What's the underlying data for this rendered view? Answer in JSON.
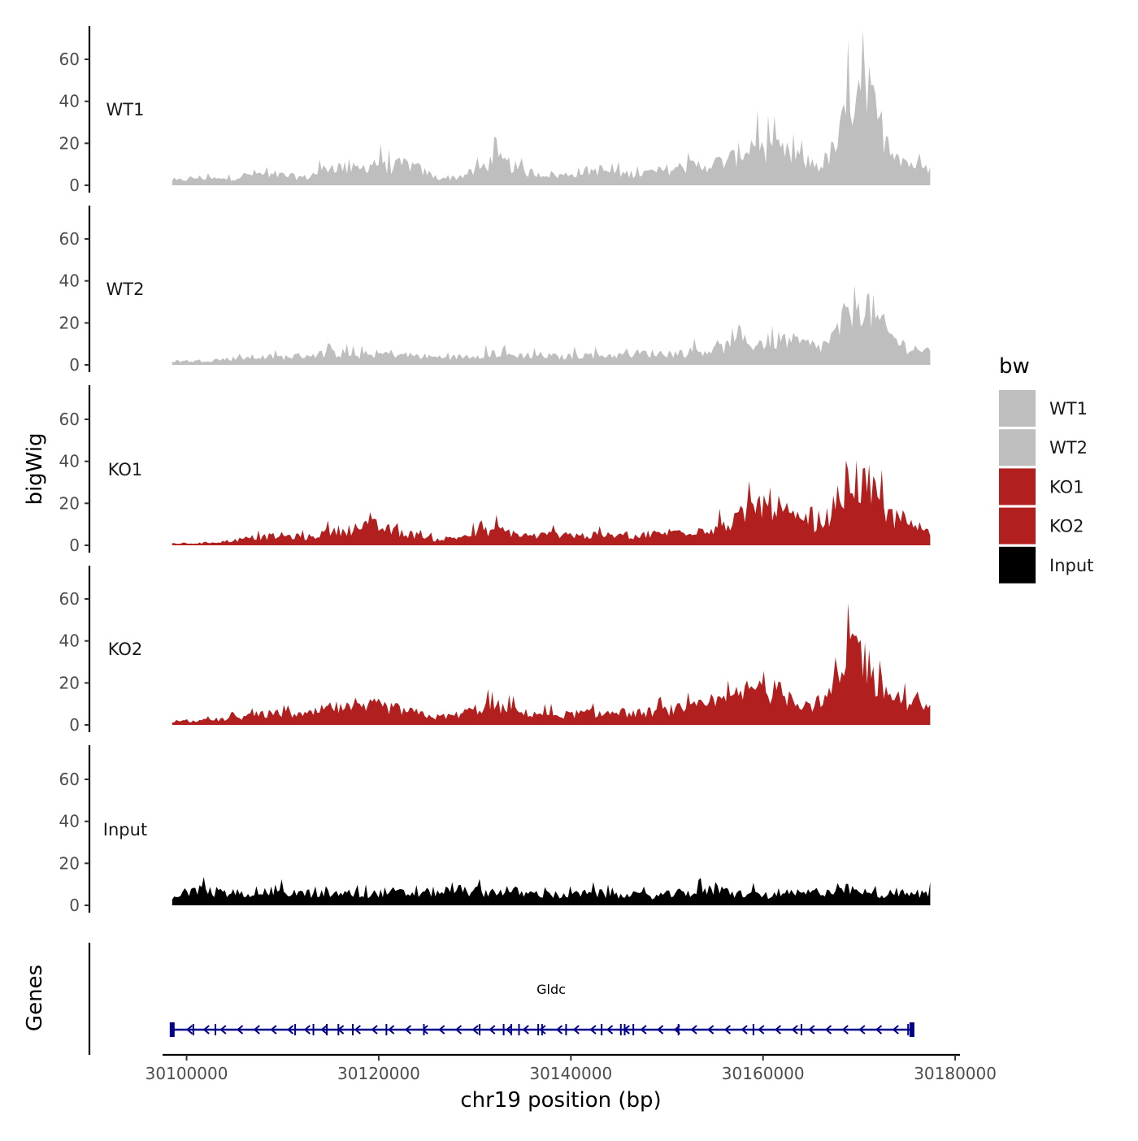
{
  "chart_data": {
    "type": "area",
    "title": "",
    "xlabel": "chr19 position (bp)",
    "ylabel": "bigWig",
    "genes_label": "Genes",
    "xlim": [
      30097500,
      30180500
    ],
    "ylim": [
      0,
      75
    ],
    "x_ticks": [
      30100000,
      30120000,
      30140000,
      30160000,
      30180000
    ],
    "x_tick_labels": [
      "30100000",
      "30120000",
      "30140000",
      "30160000",
      "30180000"
    ],
    "y_ticks": [
      0,
      20,
      40,
      60
    ],
    "y_tick_labels": [
      "0",
      "20",
      "40",
      "60"
    ],
    "region": [
      30098500,
      30177400
    ],
    "x_positions": [
      30098500,
      30101000,
      30104000,
      30107000,
      30110000,
      30112500,
      30115000,
      30118000,
      30119500,
      30121000,
      30123000,
      30126000,
      30128000,
      30130000,
      30132000,
      30133500,
      30135000,
      30137000,
      30139000,
      30141000,
      30143000,
      30145000,
      30147000,
      30149000,
      30151000,
      30153000,
      30155000,
      30157000,
      30159000,
      30160500,
      30162000,
      30164000,
      30166000,
      30167500,
      30169000,
      30170000,
      30171000,
      30172000,
      30173500,
      30175000,
      30176500,
      30177400
    ],
    "series": [
      {
        "name": "WT1",
        "color": "#bebebe",
        "values": [
          2,
          4,
          3,
          6,
          5,
          4,
          10,
          8,
          12,
          9,
          11,
          4,
          4,
          7,
          13,
          11,
          7,
          6,
          5,
          7,
          8,
          6,
          6,
          7,
          9,
          10,
          11,
          14,
          22,
          18,
          17,
          13,
          10,
          19,
          40,
          62,
          45,
          32,
          20,
          12,
          9,
          7
        ]
      },
      {
        "name": "WT2",
        "color": "#bebebe",
        "values": [
          2,
          2,
          3,
          4,
          4,
          5,
          6,
          5,
          5,
          6,
          5,
          4,
          4,
          5,
          6,
          5,
          5,
          5,
          4,
          5,
          5,
          5,
          6,
          6,
          6,
          7,
          8,
          10,
          11,
          12,
          13,
          11,
          9,
          15,
          28,
          33,
          30,
          22,
          14,
          9,
          8,
          6
        ]
      },
      {
        "name": "KO1",
        "color": "#b21f1f",
        "values": [
          1,
          1,
          2,
          4,
          5,
          4,
          7,
          9,
          10,
          8,
          6,
          3,
          4,
          6,
          8,
          7,
          5,
          5,
          6,
          5,
          5,
          5,
          5,
          6,
          7,
          8,
          9,
          12,
          20,
          22,
          18,
          11,
          10,
          20,
          35,
          32,
          30,
          22,
          14,
          10,
          9,
          8
        ]
      },
      {
        "name": "KO2",
        "color": "#b21f1f",
        "values": [
          2,
          2,
          3,
          5,
          6,
          5,
          9,
          8,
          10,
          9,
          7,
          4,
          5,
          8,
          10,
          8,
          6,
          6,
          5,
          6,
          6,
          6,
          6,
          7,
          8,
          9,
          11,
          14,
          19,
          18,
          16,
          12,
          10,
          18,
          38,
          42,
          30,
          20,
          15,
          12,
          10,
          6
        ]
      },
      {
        "name": "Input",
        "color": "#000000",
        "values": [
          5,
          8,
          6,
          7,
          7,
          6,
          6,
          6,
          6,
          7,
          6,
          7,
          8,
          7,
          7,
          8,
          6,
          6,
          5,
          6,
          6,
          5,
          5,
          5,
          6,
          7,
          8,
          6,
          6,
          5,
          6,
          6,
          7,
          8,
          8,
          7,
          6,
          6,
          6,
          6,
          6,
          6
        ]
      }
    ],
    "legend": {
      "title": "bw",
      "position": "right",
      "items": [
        {
          "label": "WT1",
          "color": "#bebebe"
        },
        {
          "label": "WT2",
          "color": "#bebebe"
        },
        {
          "label": "KO1",
          "color": "#b21f1f"
        },
        {
          "label": "KO2",
          "color": "#b21f1f"
        },
        {
          "label": "Input",
          "color": "#000000"
        }
      ]
    },
    "gene_track": {
      "gene_name": "Gldc",
      "strand": "-",
      "color": "#00008b",
      "start": 30098500,
      "end": 30175500,
      "exons": [
        30098500,
        30100700,
        30103000,
        30111300,
        30113200,
        30114600,
        30115800,
        30117300,
        30120800,
        30124700,
        30130500,
        30133000,
        30133800,
        30134600,
        30136600,
        30137000,
        30139500,
        30143200,
        30145200,
        30145600,
        30146500,
        30151200,
        30159000,
        30164000,
        30175100,
        30175500
      ]
    }
  }
}
